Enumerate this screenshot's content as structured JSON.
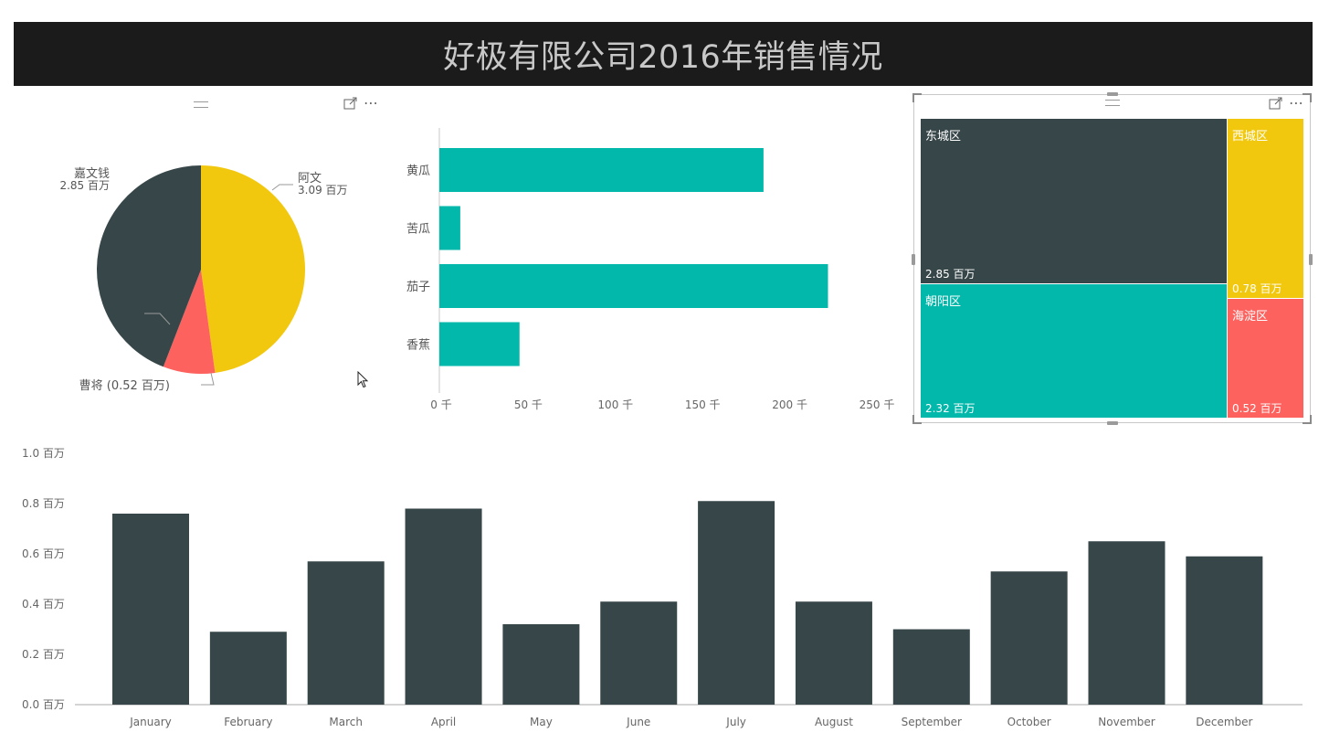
{
  "header": {
    "title": "好极有限公司2016年销售情况"
  },
  "pie": {
    "slices": [
      {
        "label": "阿文",
        "value_label": "3.09 百万",
        "value": 3.09,
        "color": "#f2c80f"
      },
      {
        "label": "曹将",
        "value_label": "0.52 百万",
        "value": 0.52,
        "color": "#fd625e"
      },
      {
        "label": "嘉文钱",
        "value_label": "2.85 百万",
        "value": 2.85,
        "color": "#374649"
      }
    ],
    "cao_label": "曹将 (0.52 百万)"
  },
  "bar_h": {
    "color": "#01b8aa",
    "categories": [
      "黄瓜",
      "苦瓜",
      "茄子",
      "香蕉"
    ],
    "values": [
      186,
      12,
      223,
      46
    ],
    "ticks": [
      {
        "value": 0,
        "label": "0 千"
      },
      {
        "value": 50,
        "label": "50 千"
      },
      {
        "value": 100,
        "label": "100 千"
      },
      {
        "value": 150,
        "label": "150 千"
      },
      {
        "value": 200,
        "label": "200 千"
      },
      {
        "value": 250,
        "label": "250 千"
      }
    ]
  },
  "treemap": {
    "tiles": [
      {
        "name": "东城区",
        "value_label": "2.85 百万",
        "value": 2.85,
        "color": "#374649"
      },
      {
        "name": "朝阳区",
        "value_label": "2.32 百万",
        "value": 2.32,
        "color": "#01b8aa"
      },
      {
        "name": "西城区",
        "value_label": "0.78 百万",
        "value": 0.78,
        "color": "#f2c80f"
      },
      {
        "name": "海淀区",
        "value_label": "0.52 百万",
        "value": 0.52,
        "color": "#fd625e"
      }
    ]
  },
  "chart_data": [
    {
      "type": "pie",
      "slices": [
        {
          "label": "阿文",
          "value": 3.09
        },
        {
          "label": "曹将",
          "value": 0.52
        },
        {
          "label": "嘉文钱",
          "value": 2.85
        }
      ]
    },
    {
      "type": "bar",
      "orientation": "horizontal",
      "categories": [
        "黄瓜",
        "苦瓜",
        "茄子",
        "香蕉"
      ],
      "values": [
        186,
        12,
        223,
        46
      ],
      "xlim": [
        0,
        250
      ],
      "xtick_labels": [
        "0 千",
        "50 千",
        "100 千",
        "150 千",
        "200 千",
        "250 千"
      ]
    },
    {
      "type": "treemap",
      "categories": [
        "东城区",
        "朝阳区",
        "西城区",
        "海淀区"
      ],
      "values": [
        2.85,
        2.32,
        0.78,
        0.52
      ]
    },
    {
      "type": "bar",
      "categories": [
        "January",
        "February",
        "March",
        "April",
        "May",
        "June",
        "July",
        "August",
        "September",
        "October",
        "November",
        "December"
      ],
      "values": [
        0.76,
        0.29,
        0.57,
        0.78,
        0.32,
        0.41,
        0.81,
        0.41,
        0.3,
        0.53,
        0.65,
        0.59
      ],
      "ylim": [
        0,
        1.0
      ],
      "ytick_labels": [
        "0.0 百万",
        "0.2 百万",
        "0.4 百万",
        "0.6 百万",
        "0.8 百万",
        "1.0 百万"
      ],
      "color": "#374649"
    }
  ],
  "monthly": {
    "color": "#374649",
    "months": [
      "January",
      "February",
      "March",
      "April",
      "May",
      "June",
      "July",
      "August",
      "September",
      "October",
      "November",
      "December"
    ],
    "values": [
      0.76,
      0.29,
      0.57,
      0.78,
      0.32,
      0.41,
      0.81,
      0.41,
      0.3,
      0.53,
      0.65,
      0.59
    ],
    "ticks": [
      {
        "value": 0.0,
        "label": "0.0 百万"
      },
      {
        "value": 0.2,
        "label": "0.2 百万"
      },
      {
        "value": 0.4,
        "label": "0.4 百万"
      },
      {
        "value": 0.6,
        "label": "0.6 百万"
      },
      {
        "value": 0.8,
        "label": "0.8 百万"
      },
      {
        "value": 1.0,
        "label": "1.0 百万"
      }
    ]
  },
  "icons": {
    "drag": "drag-handle-icon",
    "focus": "focus-mode-icon",
    "more": "more-options-icon",
    "cursor": "mouse-cursor-icon",
    "more_glyph": "⋯"
  }
}
